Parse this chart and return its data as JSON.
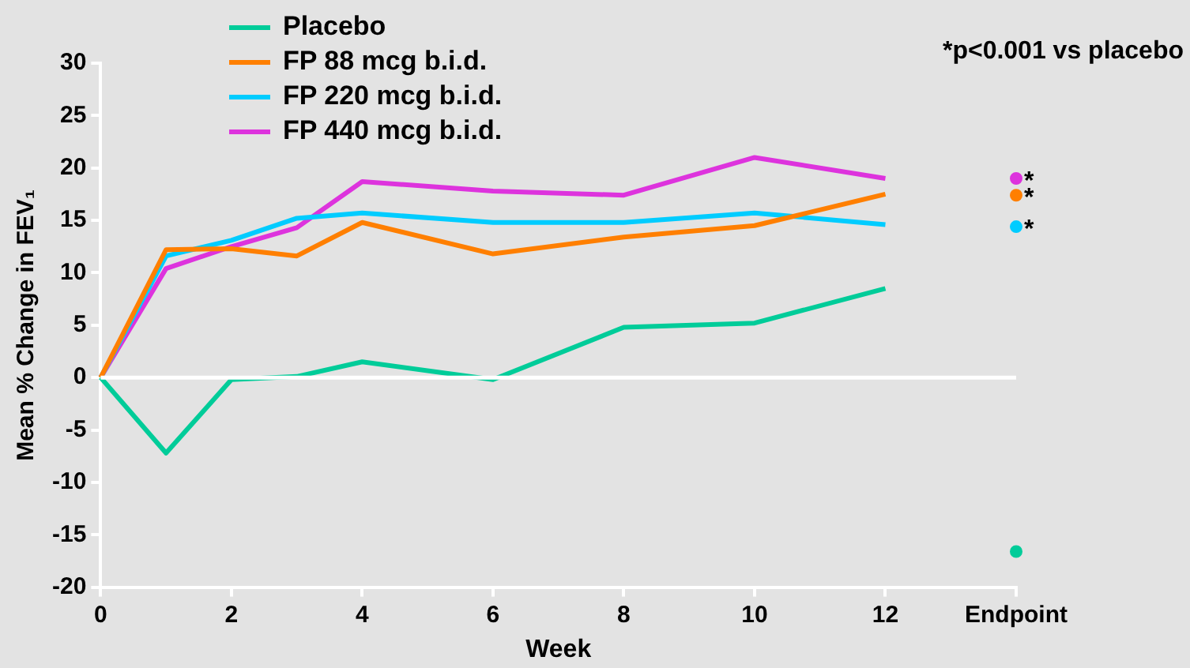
{
  "chart_data": {
    "type": "line",
    "xlabel": "Week",
    "ylabel": "Mean % Change in FEV₁",
    "categories": [
      "0",
      null,
      "2",
      null,
      "4",
      null,
      "6",
      null,
      "8",
      null,
      "10",
      null,
      "12",
      null,
      "Endpoint"
    ],
    "ylim": [
      -20,
      30
    ],
    "yticks": [
      -20,
      -15,
      -10,
      -5,
      0,
      5,
      10,
      15,
      20,
      25,
      30
    ],
    "grid": false,
    "legend": "top left",
    "marker": "none",
    "line_style": "solid",
    "series": [
      {
        "name": "Placebo",
        "color": "#00cc99",
        "values": [
          0,
          -7.2,
          -0.2,
          0.1,
          1.5,
          null,
          -0.2,
          null,
          4.8,
          null,
          5.2,
          null,
          8.5,
          null,
          null
        ]
      },
      {
        "name": "FP 88 mcg b.i.d.",
        "color": "#ff7f00",
        "values": [
          0,
          12.2,
          12.3,
          11.6,
          14.8,
          null,
          11.8,
          null,
          13.4,
          null,
          14.5,
          null,
          17.5,
          null,
          null
        ]
      },
      {
        "name": "FP 220 mcg b.i.d.",
        "color": "#00ccff",
        "values": [
          0,
          11.6,
          13.1,
          15.2,
          15.7,
          null,
          14.8,
          null,
          14.8,
          null,
          15.7,
          null,
          14.6,
          null,
          null
        ]
      },
      {
        "name": "FP 440 mcg b.i.d.",
        "color": "#dd33dd",
        "values": [
          0,
          10.4,
          12.5,
          14.3,
          18.7,
          null,
          17.8,
          null,
          17.4,
          null,
          21.0,
          null,
          19.0,
          null,
          null
        ]
      },
      {
        "type": "scatter",
        "marker": "circle",
        "color": "#00cc99",
        "x": [
          "Endpoint"
        ],
        "values": [
          -16.6
        ]
      },
      {
        "type": "scatter",
        "marker": "circle",
        "color": "#ff7f00",
        "x": [
          "Endpoint"
        ],
        "values": [
          17.4
        ]
      },
      {
        "type": "scatter",
        "marker": "circle",
        "color": "#00ccff",
        "x": [
          "Endpoint"
        ],
        "values": [
          14.4
        ]
      },
      {
        "type": "scatter",
        "marker": "circle",
        "color": "#dd33dd",
        "x": [
          "Endpoint"
        ],
        "values": [
          19.0
        ]
      }
    ],
    "ref_lines": [
      {
        "axis": "y",
        "value": 0,
        "color": "#ffffff"
      }
    ],
    "annotations": [
      "*p<0.001 vs placebo",
      {
        "text": "*",
        "x": "Endpoint",
        "y": 19.0
      },
      {
        "text": "*",
        "x": "Endpoint",
        "y": 17.4
      },
      {
        "text": "*",
        "x": "Endpoint",
        "y": 14.4
      }
    ]
  }
}
